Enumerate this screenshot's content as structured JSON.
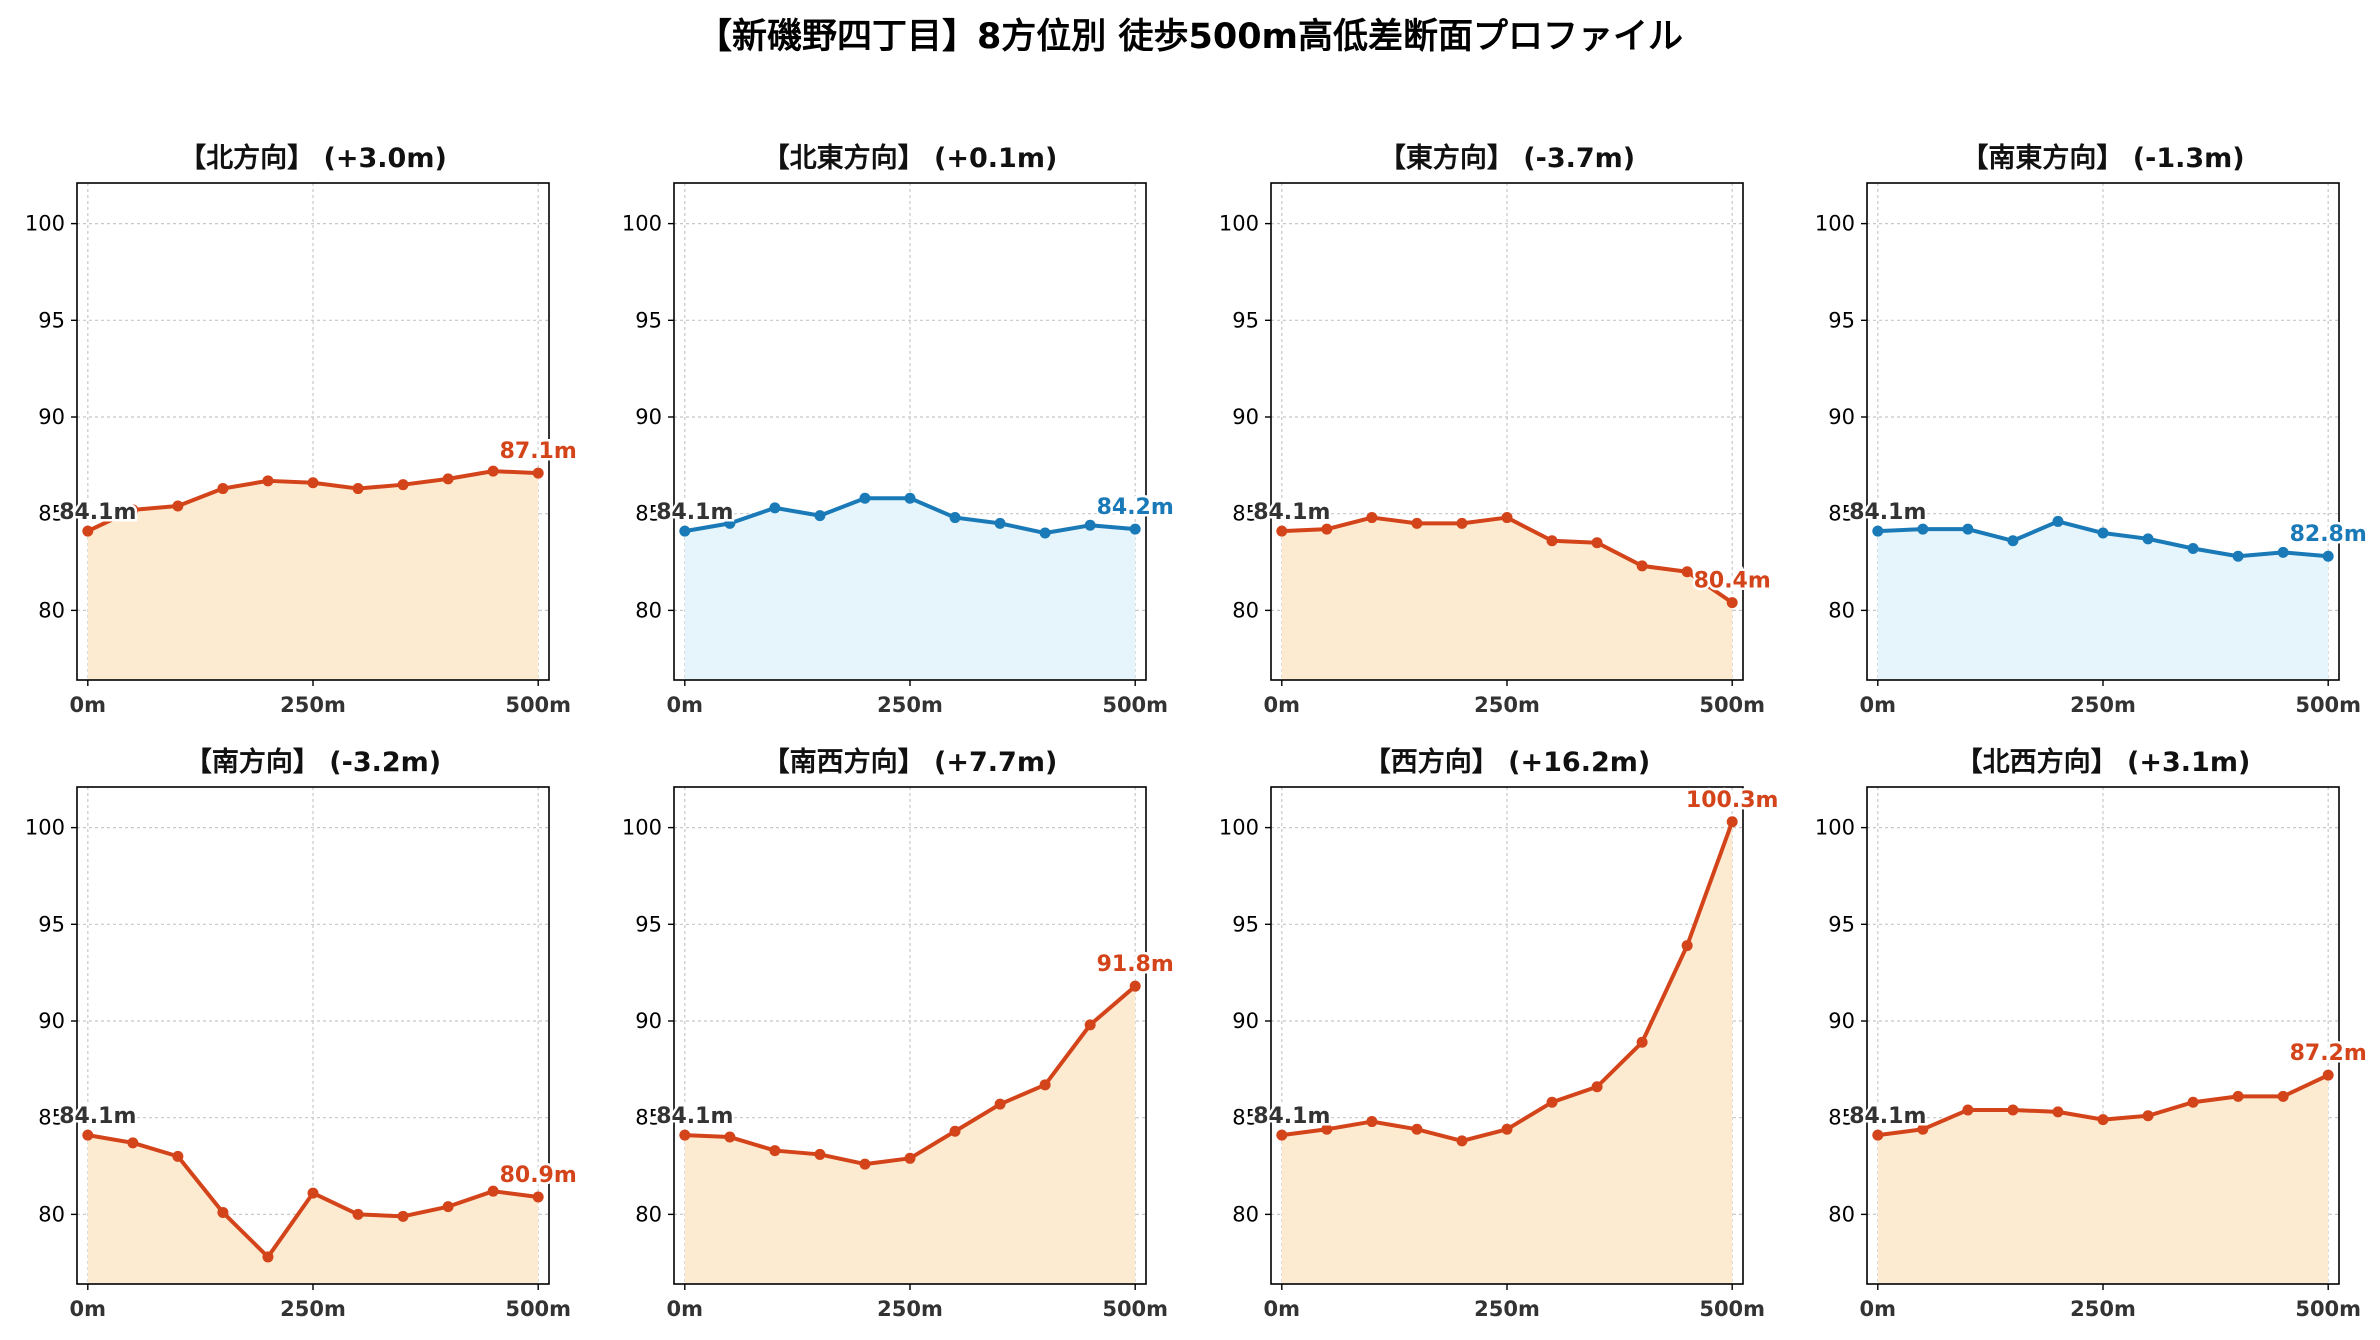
{
  "title": "【新磯野四丁目】8方位別 徒歩500m高低差断面プロファイル",
  "colors": {
    "up_line": "#d4441a",
    "up_fill": "#fdebd1",
    "down_line": "#1a7ab8",
    "down_fill": "#e6f5fb",
    "start_label": "#333333"
  },
  "chart_data": [
    {
      "type": "area",
      "title": "【北方向】 (+3.0m)",
      "trend": "up",
      "x": [
        0,
        50,
        100,
        150,
        200,
        250,
        300,
        350,
        400,
        450,
        500
      ],
      "y": [
        84.1,
        85.2,
        85.4,
        86.3,
        86.7,
        86.6,
        86.3,
        86.5,
        86.8,
        87.2,
        87.1
      ],
      "start_label": "84.1m",
      "end_label": "87.1m",
      "xticks": [
        "0m",
        "250m",
        "500m"
      ],
      "yticks": [
        80,
        85,
        90,
        95,
        100
      ],
      "ylim": [
        76.4,
        102.1
      ],
      "xlim": [
        -12,
        512
      ],
      "grid": true
    },
    {
      "type": "area",
      "title": "【北東方向】 (+0.1m)",
      "trend": "down",
      "x": [
        0,
        50,
        100,
        150,
        200,
        250,
        300,
        350,
        400,
        450,
        500
      ],
      "y": [
        84.1,
        84.5,
        85.3,
        84.9,
        85.8,
        85.8,
        84.8,
        84.5,
        84.0,
        84.4,
        84.2
      ],
      "start_label": "84.1m",
      "end_label": "84.2m",
      "xticks": [
        "0m",
        "250m",
        "500m"
      ],
      "yticks": [
        80,
        85,
        90,
        95,
        100
      ],
      "ylim": [
        76.4,
        102.1
      ],
      "xlim": [
        -12,
        512
      ],
      "grid": true
    },
    {
      "type": "area",
      "title": "【東方向】 (-3.7m)",
      "trend": "up",
      "x": [
        0,
        50,
        100,
        150,
        200,
        250,
        300,
        350,
        400,
        450,
        500
      ],
      "y": [
        84.1,
        84.2,
        84.8,
        84.5,
        84.5,
        84.8,
        83.6,
        83.5,
        82.3,
        82.0,
        80.4
      ],
      "start_label": "84.1m",
      "end_label": "80.4m",
      "xticks": [
        "0m",
        "250m",
        "500m"
      ],
      "yticks": [
        80,
        85,
        90,
        95,
        100
      ],
      "ylim": [
        76.4,
        102.1
      ],
      "xlim": [
        -12,
        512
      ],
      "grid": true
    },
    {
      "type": "area",
      "title": "【南東方向】 (-1.3m)",
      "trend": "down",
      "x": [
        0,
        50,
        100,
        150,
        200,
        250,
        300,
        350,
        400,
        450,
        500
      ],
      "y": [
        84.1,
        84.2,
        84.2,
        83.6,
        84.6,
        84.0,
        83.7,
        83.2,
        82.8,
        83.0,
        82.8
      ],
      "start_label": "84.1m",
      "end_label": "82.8m",
      "xticks": [
        "0m",
        "250m",
        "500m"
      ],
      "yticks": [
        80,
        85,
        90,
        95,
        100
      ],
      "ylim": [
        76.4,
        102.1
      ],
      "xlim": [
        -12,
        512
      ],
      "grid": true
    },
    {
      "type": "area",
      "title": "【南方向】 (-3.2m)",
      "trend": "up",
      "x": [
        0,
        50,
        100,
        150,
        200,
        250,
        300,
        350,
        400,
        450,
        500
      ],
      "y": [
        84.1,
        83.7,
        83.0,
        80.1,
        77.8,
        81.1,
        80.0,
        79.9,
        80.4,
        81.2,
        80.9
      ],
      "start_label": "84.1m",
      "end_label": "80.9m",
      "xticks": [
        "0m",
        "250m",
        "500m"
      ],
      "yticks": [
        80,
        85,
        90,
        95,
        100
      ],
      "ylim": [
        76.4,
        102.1
      ],
      "xlim": [
        -12,
        512
      ],
      "grid": true
    },
    {
      "type": "area",
      "title": "【南西方向】 (+7.7m)",
      "trend": "up",
      "x": [
        0,
        50,
        100,
        150,
        200,
        250,
        300,
        350,
        400,
        450,
        500
      ],
      "y": [
        84.1,
        84.0,
        83.3,
        83.1,
        82.6,
        82.9,
        84.3,
        85.7,
        86.7,
        89.8,
        91.8
      ],
      "start_label": "84.1m",
      "end_label": "91.8m",
      "xticks": [
        "0m",
        "250m",
        "500m"
      ],
      "yticks": [
        80,
        85,
        90,
        95,
        100
      ],
      "ylim": [
        76.4,
        102.1
      ],
      "xlim": [
        -12,
        512
      ],
      "grid": true
    },
    {
      "type": "area",
      "title": "【西方向】 (+16.2m)",
      "trend": "up",
      "x": [
        0,
        50,
        100,
        150,
        200,
        250,
        300,
        350,
        400,
        450,
        500
      ],
      "y": [
        84.1,
        84.4,
        84.8,
        84.4,
        83.8,
        84.4,
        85.8,
        86.6,
        88.9,
        93.9,
        100.3
      ],
      "start_label": "84.1m",
      "end_label": "100.3m",
      "xticks": [
        "0m",
        "250m",
        "500m"
      ],
      "yticks": [
        80,
        85,
        90,
        95,
        100
      ],
      "ylim": [
        76.4,
        102.1
      ],
      "xlim": [
        -12,
        512
      ],
      "grid": true
    },
    {
      "type": "area",
      "title": "【北西方向】 (+3.1m)",
      "trend": "up",
      "x": [
        0,
        50,
        100,
        150,
        200,
        250,
        300,
        350,
        400,
        450,
        500
      ],
      "y": [
        84.1,
        84.4,
        85.4,
        85.4,
        85.3,
        84.9,
        85.1,
        85.8,
        86.1,
        86.1,
        87.2
      ],
      "start_label": "84.1m",
      "end_label": "87.2m",
      "xticks": [
        "0m",
        "250m",
        "500m"
      ],
      "yticks": [
        80,
        85,
        90,
        95,
        100
      ],
      "ylim": [
        76.4,
        102.1
      ],
      "xlim": [
        -12,
        512
      ],
      "grid": true
    }
  ]
}
